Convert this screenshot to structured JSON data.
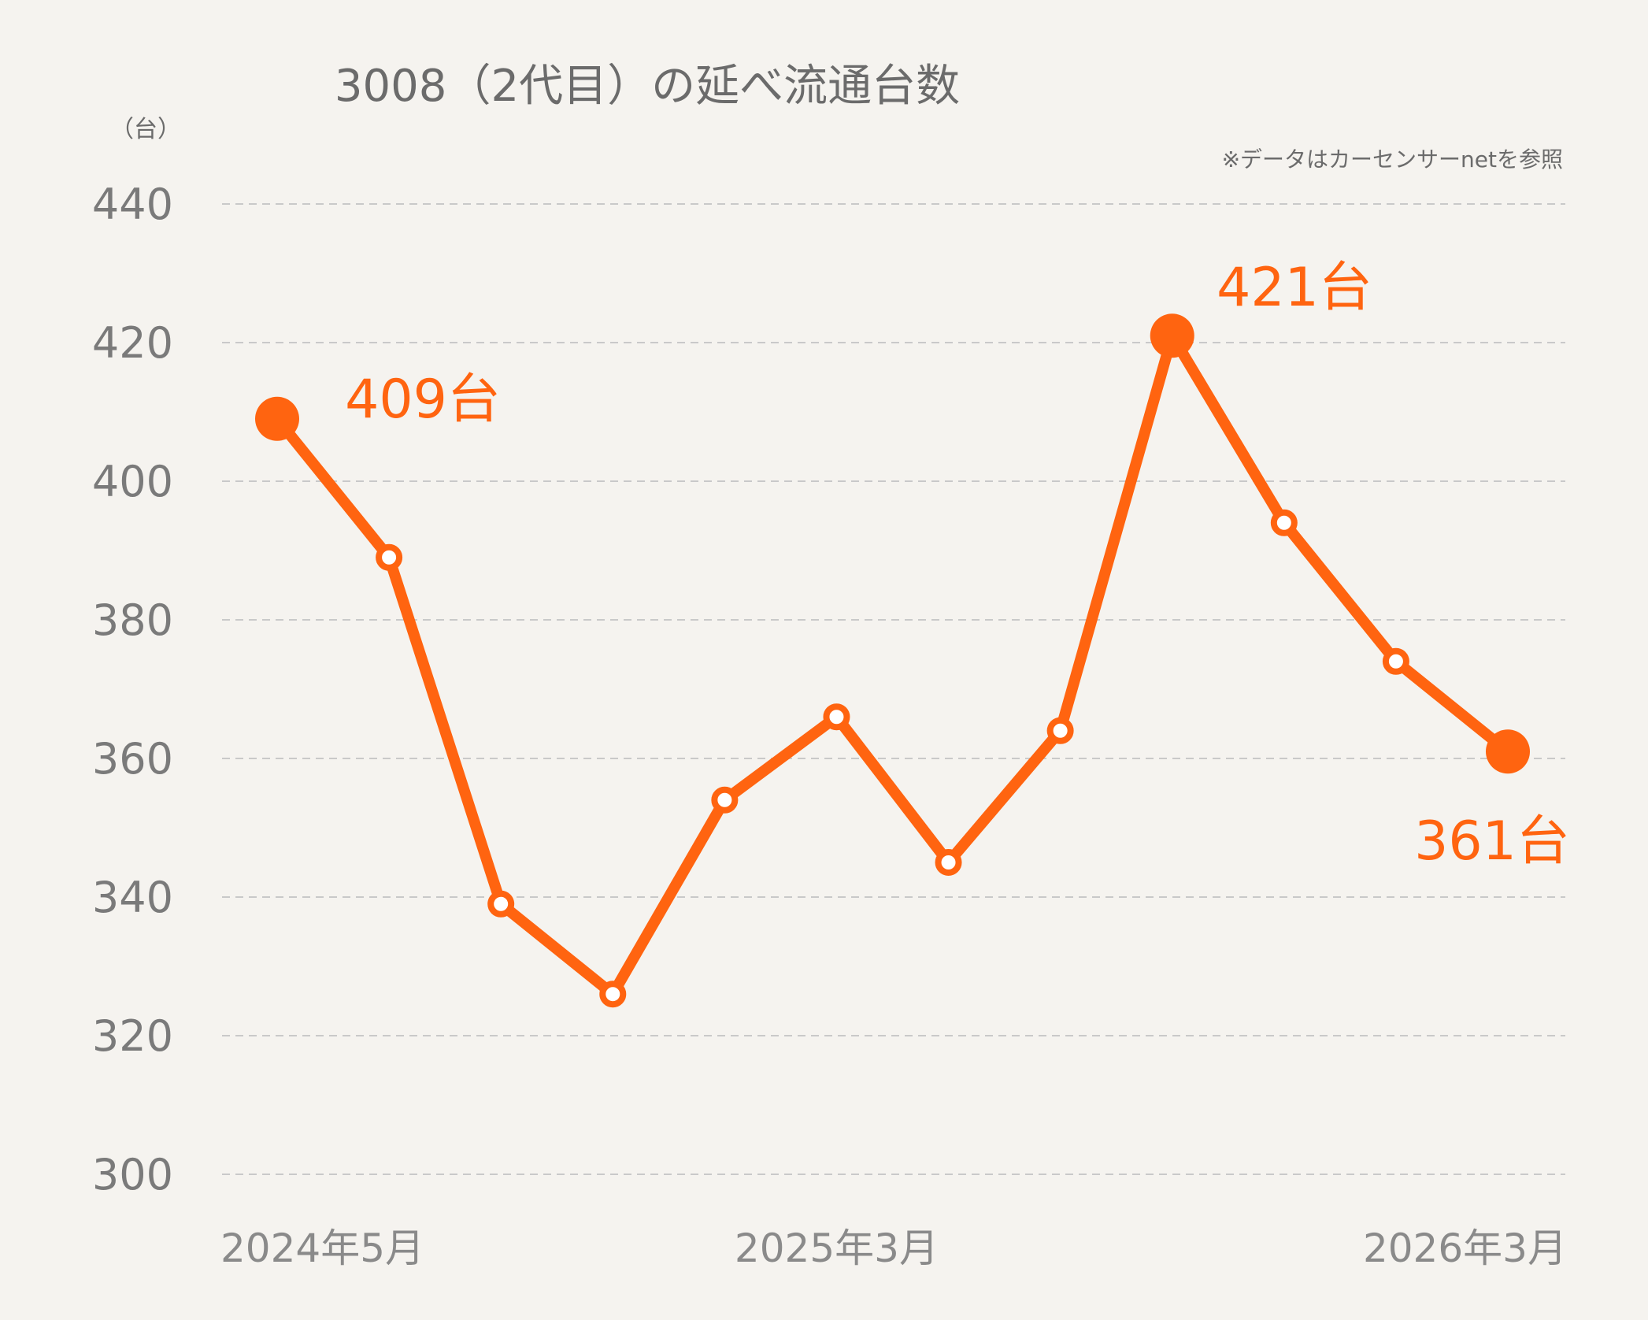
{
  "chart_data": {
    "type": "line",
    "title": "3008（2代目）の延べ流通台数",
    "unit_label": "（台）",
    "source_note": "※データはカーセンサーnetを参照",
    "ylim": [
      300,
      440
    ],
    "yticks": [
      "440",
      "420",
      "400",
      "380",
      "360",
      "340",
      "320",
      "300"
    ],
    "ytick_values": [
      440,
      420,
      400,
      380,
      360,
      340,
      320,
      300
    ],
    "x_tick_labels": [
      "2024年5月",
      "2025年3月",
      "2026年3月"
    ],
    "x_tick_index": [
      0,
      5,
      11
    ],
    "grid": true,
    "colors": {
      "line": "#ff6410",
      "grid": "#c9c9c9",
      "background": "#f5f3ef"
    },
    "series": [
      {
        "values": [
          409,
          389,
          339,
          326,
          354,
          366,
          345,
          364,
          421,
          394,
          374,
          361
        ],
        "highlight_index": [
          0,
          8,
          11
        ]
      }
    ],
    "data_labels": [
      "409台",
      "421台",
      "361台"
    ]
  }
}
